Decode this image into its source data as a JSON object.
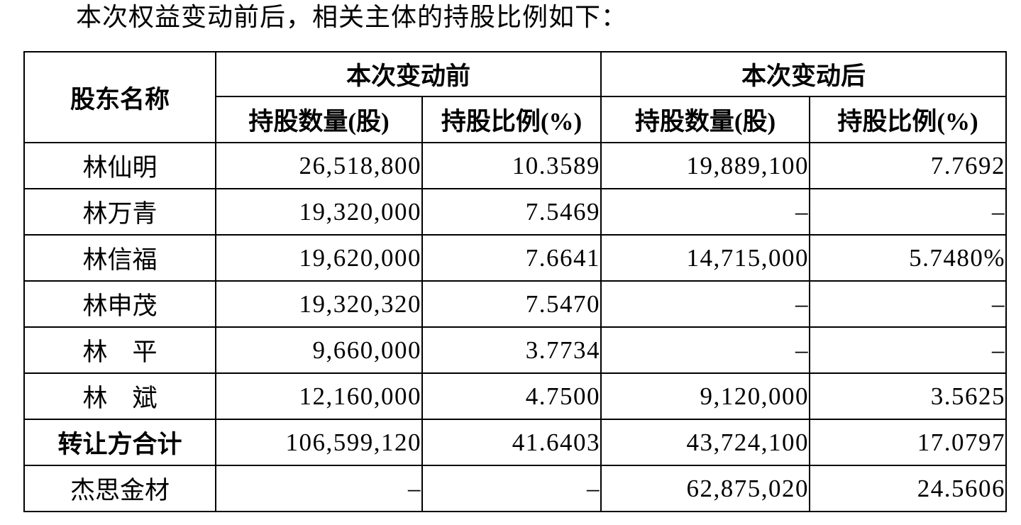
{
  "page": {
    "intro_text": "本次权益变动前后，相关主体的持股比例如下："
  },
  "table": {
    "header": {
      "shareholder": "股东名称",
      "before_group": "本次变动前",
      "after_group": "本次变动后",
      "before_qty": "持股数量(股)",
      "before_pct": "持股比例(%)",
      "after_qty": "持股数量(股)",
      "after_pct": "持股比例(%)"
    },
    "rows": [
      {
        "name": "林仙明",
        "before_qty": "26,518,800",
        "before_pct": "10.3589",
        "after_qty": "19,889,100",
        "after_pct": "7.7692"
      },
      {
        "name": "林万青",
        "before_qty": "19,320,000",
        "before_pct": "7.5469",
        "after_qty": "–",
        "after_pct": "–"
      },
      {
        "name": "林信福",
        "before_qty": "19,620,000",
        "before_pct": "7.6641",
        "after_qty": "14,715,000",
        "after_pct": "5.7480%"
      },
      {
        "name": "林申茂",
        "before_qty": "19,320,320",
        "before_pct": "7.5470",
        "after_qty": "–",
        "after_pct": "–"
      },
      {
        "name": "林　平",
        "before_qty": "9,660,000",
        "before_pct": "3.7734",
        "after_qty": "–",
        "after_pct": "–"
      },
      {
        "name": "林　斌",
        "before_qty": "12,160,000",
        "before_pct": "4.7500",
        "after_qty": "9,120,000",
        "after_pct": "3.5625"
      },
      {
        "name": "转让方合计",
        "before_qty": "106,599,120",
        "before_pct": "41.6403",
        "after_qty": "43,724,100",
        "after_pct": "17.0797"
      },
      {
        "name": "杰思金材",
        "before_qty": "–",
        "before_pct": "–",
        "after_qty": "62,875,020",
        "after_pct": "24.5606"
      }
    ]
  }
}
